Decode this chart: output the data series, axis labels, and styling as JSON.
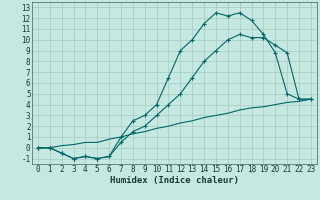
{
  "xlabel": "Humidex (Indice chaleur)",
  "background_color": "#c5e8e0",
  "grid_color": "#aad0c8",
  "line_color": "#006868",
  "line1_x": [
    0,
    1,
    2,
    3,
    4,
    5,
    6,
    7,
    8,
    9,
    10,
    11,
    12,
    13,
    14,
    15,
    16,
    17,
    18,
    19,
    20,
    21,
    22,
    23
  ],
  "line1_y": [
    0,
    0,
    -0.5,
    -1,
    -0.8,
    -1,
    -0.8,
    1,
    2.5,
    3,
    4,
    6.5,
    9,
    10,
    11.5,
    12.5,
    12.2,
    12.5,
    11.8,
    10.5,
    8.8,
    5.0,
    4.5,
    4.5
  ],
  "line2_x": [
    0,
    1,
    2,
    3,
    4,
    5,
    6,
    7,
    8,
    9,
    10,
    11,
    12,
    13,
    14,
    15,
    16,
    17,
    18,
    19,
    20,
    21,
    22,
    23
  ],
  "line2_y": [
    0,
    0,
    -0.5,
    -1,
    -0.8,
    -1,
    -0.8,
    0.5,
    1.5,
    2,
    3,
    4,
    5,
    6.5,
    8,
    9,
    10,
    10.5,
    10.2,
    10.2,
    9.5,
    8.8,
    4.5,
    4.5
  ],
  "line3_x": [
    0,
    1,
    2,
    3,
    4,
    5,
    6,
    7,
    8,
    9,
    10,
    11,
    12,
    13,
    14,
    15,
    16,
    17,
    18,
    19,
    20,
    21,
    22,
    23
  ],
  "line3_y": [
    0,
    0,
    0.2,
    0.3,
    0.5,
    0.5,
    0.8,
    1.0,
    1.3,
    1.5,
    1.8,
    2.0,
    2.3,
    2.5,
    2.8,
    3.0,
    3.2,
    3.5,
    3.7,
    3.8,
    4.0,
    4.2,
    4.3,
    4.5
  ],
  "xlim": [
    -0.5,
    23.5
  ],
  "ylim": [
    -1.5,
    13.5
  ],
  "yticks": [
    -1,
    0,
    1,
    2,
    3,
    4,
    5,
    6,
    7,
    8,
    9,
    10,
    11,
    12,
    13
  ],
  "xticks": [
    0,
    1,
    2,
    3,
    4,
    5,
    6,
    7,
    8,
    9,
    10,
    11,
    12,
    13,
    14,
    15,
    16,
    17,
    18,
    19,
    20,
    21,
    22,
    23
  ],
  "xlabel_fontsize": 6.5,
  "tick_fontsize": 5.5
}
